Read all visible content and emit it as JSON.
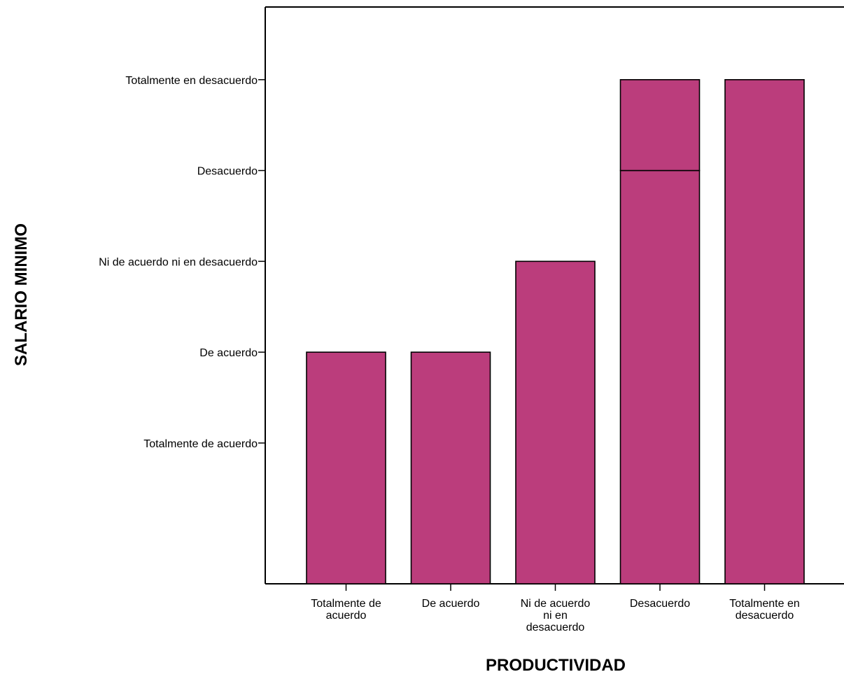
{
  "chart_data": {
    "type": "bar",
    "stacked": true,
    "xlabel": "PRODUCTIVIDAD",
    "ylabel": "SALARIO MINIMO",
    "categories": [
      "Totalmente de acuerdo",
      "De acuerdo",
      "Ni de acuerdo ni en desacuerdo",
      "Desacuerdo",
      "Totalmente en desacuerdo"
    ],
    "x_tick_lines": [
      [
        "Totalmente de",
        "acuerdo"
      ],
      [
        "De acuerdo"
      ],
      [
        "Ni de acuerdo",
        "ni en",
        "desacuerdo"
      ],
      [
        "Desacuerdo"
      ],
      [
        "Totalmente en",
        "desacuerdo"
      ]
    ],
    "y_ticks": [
      {
        "value": 1,
        "label": "Totalmente de acuerdo"
      },
      {
        "value": 2,
        "label": "De acuerdo"
      },
      {
        "value": 3,
        "label": "Ni de acuerdo ni en desacuerdo"
      },
      {
        "value": 4,
        "label": "Desacuerdo"
      },
      {
        "value": 5,
        "label": "Totalmente en desacuerdo"
      }
    ],
    "ylim": [
      -0.55,
      5.8
    ],
    "segments": [
      [
        2
      ],
      [
        2
      ],
      [
        3
      ],
      [
        4,
        1
      ],
      [
        5
      ]
    ],
    "bar_color": "#bb3d7c",
    "edge_color": "#000000",
    "grid": false,
    "legend": "none"
  }
}
